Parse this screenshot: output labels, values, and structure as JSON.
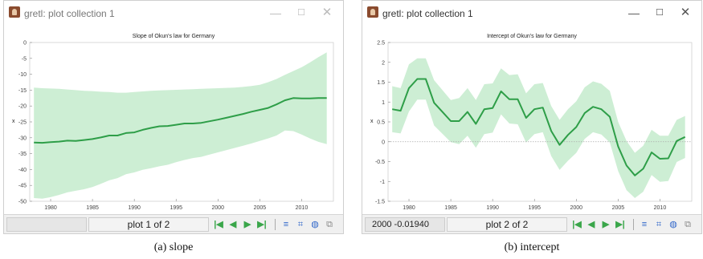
{
  "windows": [
    {
      "title": "gretl: plot collection 1",
      "status_coord": "",
      "status_page": "plot 1 of 2",
      "caption": "(a) slope",
      "chart_data": {
        "type": "line",
        "title": "Slope of Okun's law for Germany",
        "xlabel": "",
        "ylabel": "x",
        "xlim": [
          1977.5,
          2013.8
        ],
        "ylim": [
          -50,
          0
        ],
        "xticks": [
          1980,
          1985,
          1990,
          1995,
          2000,
          2005,
          2010
        ],
        "yticks": [
          0,
          -5,
          -10,
          -15,
          -20,
          -25,
          -30,
          -35,
          -40,
          -45,
          -50
        ],
        "grid": false,
        "zero_line": false,
        "band_color": "#cdeed4",
        "line_color": "#2e9e48",
        "x": [
          1978,
          1979,
          1980,
          1981,
          1982,
          1983,
          1984,
          1985,
          1986,
          1987,
          1988,
          1989,
          1990,
          1991,
          1992,
          1993,
          1994,
          1995,
          1996,
          1997,
          1998,
          1999,
          2000,
          2001,
          2002,
          2003,
          2004,
          2005,
          2006,
          2007,
          2008,
          2009,
          2010,
          2011,
          2012,
          2013
        ],
        "y": [
          -31.5,
          -31.6,
          -31.4,
          -31.2,
          -30.9,
          -31.0,
          -30.7,
          -30.4,
          -29.9,
          -29.3,
          -29.3,
          -28.5,
          -28.3,
          -27.5,
          -26.9,
          -26.4,
          -26.3,
          -25.9,
          -25.5,
          -25.5,
          -25.3,
          -24.8,
          -24.3,
          -23.7,
          -23.1,
          -22.5,
          -21.8,
          -21.2,
          -20.6,
          -19.5,
          -18.2,
          -17.5,
          -17.6,
          -17.6,
          -17.5,
          -17.5
        ],
        "upper": [
          -14.2,
          -14.4,
          -14.5,
          -14.6,
          -14.8,
          -15.0,
          -15.2,
          -15.3,
          -15.5,
          -15.6,
          -15.8,
          -15.8,
          -15.6,
          -15.4,
          -15.2,
          -15.1,
          -15.0,
          -14.9,
          -14.8,
          -14.7,
          -14.6,
          -14.5,
          -14.4,
          -14.3,
          -14.2,
          -14.0,
          -13.7,
          -13.3,
          -12.5,
          -11.5,
          -10.2,
          -9.0,
          -7.8,
          -6.3,
          -4.6,
          -3.1
        ],
        "lower": [
          -49.0,
          -49.2,
          -48.7,
          -48.0,
          -47.2,
          -46.7,
          -46.2,
          -45.5,
          -44.5,
          -43.4,
          -42.7,
          -41.5,
          -40.9,
          -40.1,
          -39.6,
          -39.0,
          -38.5,
          -37.7,
          -37.0,
          -36.4,
          -36.0,
          -35.3,
          -34.6,
          -33.9,
          -33.2,
          -32.5,
          -31.8,
          -31.0,
          -30.2,
          -29.3,
          -27.7,
          -27.9,
          -29.0,
          -30.2,
          -31.3,
          -32.0
        ]
      }
    },
    {
      "title": "gretl: plot collection 1",
      "status_coord": "2000 -0.01940",
      "status_page": "plot 2 of 2",
      "caption": "(b) intercept",
      "chart_data": {
        "type": "line",
        "title": "Intercept of Okun's law for Germany",
        "xlabel": "",
        "ylabel": "x",
        "xlim": [
          1977.5,
          2013.8
        ],
        "ylim": [
          -1.5,
          2.5
        ],
        "xticks": [
          1980,
          1985,
          1990,
          1995,
          2000,
          2005,
          2010
        ],
        "yticks": [
          2.5,
          2,
          1.5,
          1,
          0.5,
          0,
          -0.5,
          -1,
          -1.5
        ],
        "grid": false,
        "zero_line": true,
        "band_color": "#cdeed4",
        "line_color": "#2e9e48",
        "x": [
          1978,
          1979,
          1980,
          1981,
          1982,
          1983,
          1984,
          1985,
          1986,
          1987,
          1988,
          1989,
          1990,
          1991,
          1992,
          1993,
          1994,
          1995,
          1996,
          1997,
          1998,
          1999,
          2000,
          2001,
          2002,
          2003,
          2004,
          2005,
          2006,
          2007,
          2008,
          2009,
          2010,
          2011,
          2012,
          2013
        ],
        "y": [
          0.82,
          0.78,
          1.35,
          1.58,
          1.58,
          0.98,
          0.75,
          0.52,
          0.52,
          0.75,
          0.45,
          0.82,
          0.85,
          1.27,
          1.07,
          1.07,
          0.6,
          0.82,
          0.86,
          0.27,
          -0.08,
          0.17,
          0.37,
          0.72,
          0.88,
          0.82,
          0.63,
          -0.12,
          -0.6,
          -0.85,
          -0.68,
          -0.27,
          -0.43,
          -0.42,
          0.02,
          0.12
        ],
        "upper": [
          1.4,
          1.35,
          1.95,
          2.1,
          2.1,
          1.55,
          1.3,
          1.05,
          1.1,
          1.35,
          1.05,
          1.45,
          1.47,
          1.85,
          1.68,
          1.7,
          1.22,
          1.45,
          1.48,
          0.9,
          0.55,
          0.82,
          1.02,
          1.37,
          1.52,
          1.46,
          1.28,
          0.5,
          0.02,
          -0.28,
          -0.1,
          0.3,
          0.15,
          0.15,
          0.55,
          0.65
        ],
        "lower": [
          0.24,
          0.21,
          0.76,
          1.06,
          1.06,
          0.41,
          0.2,
          -0.01,
          -0.06,
          0.15,
          -0.15,
          0.19,
          0.23,
          0.69,
          0.46,
          0.44,
          -0.02,
          0.19,
          0.24,
          -0.36,
          -0.71,
          -0.48,
          -0.28,
          0.07,
          0.24,
          0.18,
          -0.02,
          -0.74,
          -1.22,
          -1.42,
          -1.26,
          -0.84,
          -1.01,
          -0.99,
          -0.51,
          -0.41
        ]
      }
    }
  ],
  "icons": [
    "first-page-icon",
    "prev-page-icon",
    "next-page-icon",
    "last-page-icon",
    "menu-icon",
    "zoom-icon",
    "globe-icon",
    "close-window-icon"
  ]
}
